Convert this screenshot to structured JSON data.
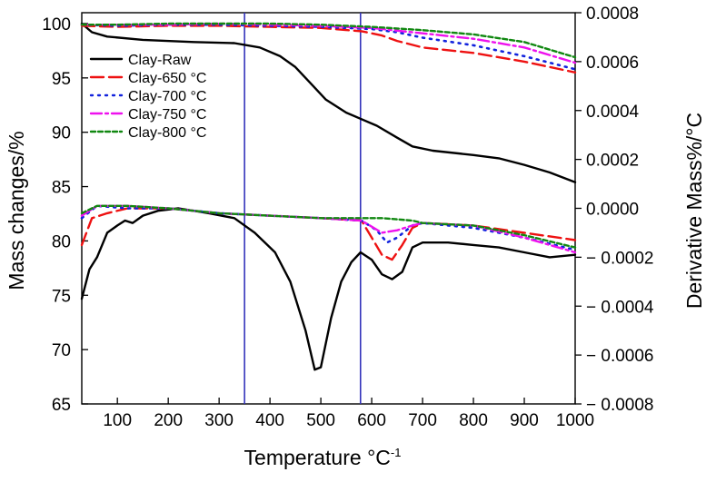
{
  "chart_data": {
    "type": "line",
    "xlabel": "Temperature",
    "xlabel_unit": "°C",
    "xlabel_sup": "-1",
    "ylabel_left": "Mass changes/%",
    "ylabel_right": "Derivative Mass%/°C",
    "xlim": [
      30,
      1000
    ],
    "ylim_left": [
      65,
      101
    ],
    "ylim_right": [
      -0.0008,
      0.0008
    ],
    "x_ticks": [
      100,
      200,
      300,
      400,
      500,
      600,
      700,
      800,
      900,
      1000
    ],
    "x_tick_labels": [
      "100",
      "200",
      "300",
      "400",
      "500",
      "600",
      "700",
      "800",
      "900",
      "1000"
    ],
    "y_left_ticks": [
      65,
      70,
      75,
      80,
      85,
      90,
      95,
      100
    ],
    "y_left_tick_labels": [
      "65",
      "70",
      "75",
      "80",
      "85",
      "90",
      "95",
      "100"
    ],
    "y_right_ticks": [
      -0.0008,
      -0.0006,
      -0.0004,
      -0.0002,
      0.0,
      0.0002,
      0.0004,
      0.0006,
      0.0008
    ],
    "y_right_tick_labels": [
      "− 0.0008",
      "− 0.0006",
      "− 0.0004",
      "− 0.0002",
      "0.0000",
      "0.0002",
      "0.0004",
      "0.0006",
      "0.0008"
    ],
    "vertical_lines": [
      {
        "x": 350,
        "color": "#3333bb"
      },
      {
        "x": 578,
        "color": "#3333bb"
      }
    ],
    "legend_position": "top-left",
    "series": [
      {
        "name": "Clay-Raw",
        "kind": "mass",
        "color": "#000000",
        "dash": "solid",
        "points": [
          [
            30,
            100
          ],
          [
            50,
            99.2
          ],
          [
            80,
            98.8
          ],
          [
            150,
            98.5
          ],
          [
            250,
            98.3
          ],
          [
            330,
            98.2
          ],
          [
            380,
            97.8
          ],
          [
            420,
            97
          ],
          [
            450,
            96
          ],
          [
            480,
            94.5
          ],
          [
            510,
            93
          ],
          [
            550,
            91.8
          ],
          [
            580,
            91.2
          ],
          [
            610,
            90.6
          ],
          [
            650,
            89.5
          ],
          [
            680,
            88.7
          ],
          [
            720,
            88.3
          ],
          [
            800,
            87.9
          ],
          [
            850,
            87.6
          ],
          [
            900,
            87
          ],
          [
            950,
            86.3
          ],
          [
            1000,
            85.4
          ]
        ]
      },
      {
        "name": "Clay-650 °C",
        "kind": "mass",
        "color": "#ee1111",
        "dash": "long-dash",
        "points": [
          [
            30,
            99.8
          ],
          [
            100,
            99.7
          ],
          [
            200,
            99.8
          ],
          [
            300,
            99.8
          ],
          [
            400,
            99.7
          ],
          [
            500,
            99.6
          ],
          [
            580,
            99.3
          ],
          [
            620,
            98.9
          ],
          [
            650,
            98.4
          ],
          [
            700,
            97.8
          ],
          [
            800,
            97.3
          ],
          [
            900,
            96.5
          ],
          [
            1000,
            95.5
          ]
        ]
      },
      {
        "name": "Clay-700 °C",
        "kind": "mass",
        "color": "#1122dd",
        "dash": "dot",
        "points": [
          [
            30,
            99.9
          ],
          [
            100,
            99.8
          ],
          [
            200,
            99.9
          ],
          [
            300,
            99.9
          ],
          [
            400,
            99.8
          ],
          [
            500,
            99.7
          ],
          [
            600,
            99.5
          ],
          [
            650,
            99.2
          ],
          [
            700,
            98.7
          ],
          [
            800,
            98
          ],
          [
            900,
            97
          ],
          [
            1000,
            95.8
          ]
        ]
      },
      {
        "name": "Clay-750 °C",
        "kind": "mass",
        "color": "#ee11ee",
        "dash": "dash-dot",
        "points": [
          [
            30,
            99.9
          ],
          [
            100,
            99.9
          ],
          [
            200,
            99.9
          ],
          [
            300,
            100
          ],
          [
            400,
            99.9
          ],
          [
            500,
            99.8
          ],
          [
            600,
            99.6
          ],
          [
            700,
            99.1
          ],
          [
            800,
            98.6
          ],
          [
            900,
            97.8
          ],
          [
            1000,
            96.4
          ]
        ]
      },
      {
        "name": "Clay-800 °C",
        "kind": "mass",
        "color": "#118811",
        "dash": "short-dash",
        "points": [
          [
            30,
            99.9
          ],
          [
            100,
            99.9
          ],
          [
            200,
            100
          ],
          [
            300,
            100
          ],
          [
            400,
            100
          ],
          [
            500,
            99.9
          ],
          [
            600,
            99.7
          ],
          [
            700,
            99.4
          ],
          [
            800,
            99
          ],
          [
            900,
            98.3
          ],
          [
            1000,
            96.9
          ]
        ]
      },
      {
        "name": "Clay-Raw",
        "kind": "derivative",
        "color": "#000000",
        "dash": "solid",
        "points": [
          [
            30,
            -0.00037
          ],
          [
            45,
            -0.00025
          ],
          [
            60,
            -0.0002
          ],
          [
            80,
            -0.0001
          ],
          [
            100,
            -7e-05
          ],
          [
            115,
            -5e-05
          ],
          [
            130,
            -6e-05
          ],
          [
            150,
            -3e-05
          ],
          [
            180,
            -1e-05
          ],
          [
            220,
            0.0
          ],
          [
            280,
            -2e-05
          ],
          [
            330,
            -4e-05
          ],
          [
            370,
            -0.0001
          ],
          [
            410,
            -0.00018
          ],
          [
            440,
            -0.0003
          ],
          [
            470,
            -0.0005
          ],
          [
            488,
            -0.00066
          ],
          [
            500,
            -0.00065
          ],
          [
            520,
            -0.00045
          ],
          [
            540,
            -0.0003
          ],
          [
            560,
            -0.00022
          ],
          [
            578,
            -0.00018
          ],
          [
            600,
            -0.00021
          ],
          [
            620,
            -0.00027
          ],
          [
            640,
            -0.00029
          ],
          [
            660,
            -0.00026
          ],
          [
            680,
            -0.00016
          ],
          [
            700,
            -0.00014
          ],
          [
            750,
            -0.00014
          ],
          [
            800,
            -0.00015
          ],
          [
            850,
            -0.00016
          ],
          [
            900,
            -0.00018
          ],
          [
            950,
            -0.0002
          ],
          [
            1000,
            -0.00019
          ]
        ]
      },
      {
        "name": "Clay-650 °C",
        "kind": "derivative",
        "color": "#ee1111",
        "dash": "long-dash",
        "points": [
          [
            30,
            -0.00015
          ],
          [
            50,
            -4e-05
          ],
          [
            80,
            -2e-05
          ],
          [
            120,
            0.0
          ],
          [
            200,
            0.0
          ],
          [
            300,
            -2e-05
          ],
          [
            400,
            -3e-05
          ],
          [
            500,
            -4e-05
          ],
          [
            580,
            -5e-05
          ],
          [
            600,
            -0.00012
          ],
          [
            620,
            -0.00019
          ],
          [
            640,
            -0.00021
          ],
          [
            660,
            -0.00015
          ],
          [
            680,
            -8e-05
          ],
          [
            700,
            -6e-05
          ],
          [
            800,
            -7e-05
          ],
          [
            900,
            -0.0001
          ],
          [
            1000,
            -0.00013
          ]
        ]
      },
      {
        "name": "Clay-700 °C",
        "kind": "derivative",
        "color": "#1122dd",
        "dash": "dot",
        "points": [
          [
            30,
            -4e-05
          ],
          [
            60,
            1e-05
          ],
          [
            120,
            0.0
          ],
          [
            200,
            0.0
          ],
          [
            300,
            -2e-05
          ],
          [
            400,
            -3e-05
          ],
          [
            500,
            -4e-05
          ],
          [
            580,
            -5e-05
          ],
          [
            610,
            -9e-05
          ],
          [
            630,
            -0.00014
          ],
          [
            650,
            -0.00012
          ],
          [
            680,
            -7e-05
          ],
          [
            700,
            -6e-05
          ],
          [
            800,
            -8e-05
          ],
          [
            900,
            -0.00012
          ],
          [
            1000,
            -0.00017
          ]
        ]
      },
      {
        "name": "Clay-750 °C",
        "kind": "derivative",
        "color": "#ee11ee",
        "dash": "dash-dot",
        "points": [
          [
            30,
            -3e-05
          ],
          [
            60,
            1e-05
          ],
          [
            120,
            1e-05
          ],
          [
            200,
            0.0
          ],
          [
            300,
            -2e-05
          ],
          [
            400,
            -3e-05
          ],
          [
            500,
            -4e-05
          ],
          [
            580,
            -5e-05
          ],
          [
            620,
            -0.0001
          ],
          [
            650,
            -9e-05
          ],
          [
            680,
            -7e-05
          ],
          [
            700,
            -6e-05
          ],
          [
            800,
            -7e-05
          ],
          [
            900,
            -0.00012
          ],
          [
            1000,
            -0.00018
          ]
        ]
      },
      {
        "name": "Clay-800 °C",
        "kind": "derivative",
        "color": "#118811",
        "dash": "short-dash",
        "points": [
          [
            30,
            -2e-05
          ],
          [
            60,
            1e-05
          ],
          [
            120,
            1e-05
          ],
          [
            200,
            0.0
          ],
          [
            300,
            -2e-05
          ],
          [
            400,
            -3e-05
          ],
          [
            500,
            -4e-05
          ],
          [
            580,
            -4e-05
          ],
          [
            620,
            -4e-05
          ],
          [
            680,
            -5e-05
          ],
          [
            700,
            -6e-05
          ],
          [
            800,
            -7e-05
          ],
          [
            900,
            -0.00011
          ],
          [
            1000,
            -0.00016
          ]
        ]
      }
    ]
  }
}
